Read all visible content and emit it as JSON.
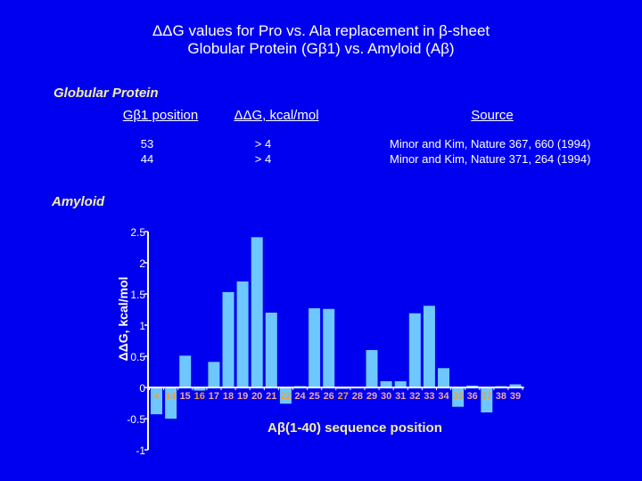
{
  "header": {
    "title_line1": "ΔΔG values for Pro vs. Ala replacement in β-sheet",
    "title_line2": "Globular Protein (Gβ1) vs. Amyloid (Aβ)"
  },
  "globular": {
    "section_label": "Globular Protein",
    "columns": [
      "Gβ1 position",
      "ΔΔG, kcal/mol",
      "Source"
    ],
    "rows": [
      {
        "position": "53",
        "ddg": "> 4",
        "source": "Minor and Kim, Nature 367, 660 (1994)"
      },
      {
        "position": "44",
        "ddg": "> 4",
        "source": "Minor and Kim, Nature 371, 264 (1994)"
      }
    ]
  },
  "amyloid": {
    "section_label": "Amyloid"
  },
  "colors": {
    "background": "#0000f0",
    "bar": "#6ec8ff",
    "axis": "#ffffff",
    "label_positive": "#f0a8a0",
    "label_negative": "#e8a040",
    "section_label": "#f5f0a0"
  },
  "chart_data": {
    "type": "bar",
    "title": "",
    "xlabel": "Aβ(1-40) sequence position",
    "ylabel": "ΔΔG, kcal/mol",
    "ylim": [
      -1,
      2.5
    ],
    "yticks": [
      "2.5",
      "2",
      "1.5",
      "1",
      "0.5",
      "0",
      "-0.5",
      "-1"
    ],
    "grid": false,
    "categories": [
      "4",
      "14",
      "15",
      "16",
      "17",
      "18",
      "19",
      "20",
      "21",
      "22",
      "24",
      "25",
      "26",
      "27",
      "28",
      "29",
      "30",
      "31",
      "32",
      "33",
      "34",
      "35",
      "36",
      "37",
      "38",
      "39"
    ],
    "values": [
      -0.43,
      -0.5,
      0.51,
      -0.05,
      0.41,
      1.53,
      1.7,
      2.41,
      1.2,
      -0.26,
      0.01,
      1.27,
      1.26,
      -0.02,
      0.0,
      0.6,
      0.1,
      0.1,
      1.19,
      1.31,
      0.31,
      -0.31,
      0.03,
      -0.4,
      0.02,
      0.05
    ]
  }
}
